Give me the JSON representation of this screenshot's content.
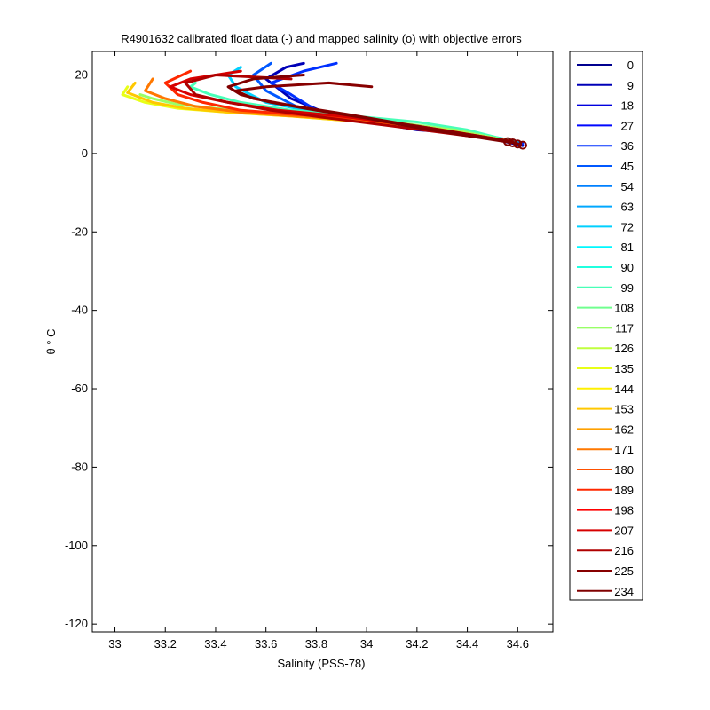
{
  "chart_data": {
    "type": "line",
    "title": "R4901632 calibrated float data (-) and mapped salinity (o) with objective errors",
    "xlabel": "Salinity (PSS-78)",
    "ylabel": "θ ° C",
    "xlim": [
      32.91,
      34.74
    ],
    "ylim": [
      -122,
      26
    ],
    "xticks": [
      33,
      33.2,
      33.4,
      33.6,
      33.8,
      34,
      34.2,
      34.4,
      34.6
    ],
    "xtick_labels": [
      "33",
      "33.2",
      "33.4",
      "33.6",
      "33.8",
      "34",
      "34.2",
      "34.4",
      "34.6"
    ],
    "yticks": [
      20,
      0,
      -20,
      -40,
      -60,
      -80,
      -100,
      -120
    ],
    "ytick_labels": [
      "20",
      "0",
      "-20",
      "-40",
      "-60",
      "-80",
      "-100",
      "-120"
    ],
    "grid": false,
    "legend_position": "outside-right",
    "legend": [
      {
        "label": "0",
        "color": "#00008f"
      },
      {
        "label": "9",
        "color": "#0000b7"
      },
      {
        "label": "18",
        "color": "#0000df"
      },
      {
        "label": "27",
        "color": "#0008ff"
      },
      {
        "label": "36",
        "color": "#0030ff"
      },
      {
        "label": "45",
        "color": "#0058ff"
      },
      {
        "label": "54",
        "color": "#0080ff"
      },
      {
        "label": "63",
        "color": "#00a8ff"
      },
      {
        "label": "72",
        "color": "#00d0ff"
      },
      {
        "label": "81",
        "color": "#00f8ff"
      },
      {
        "label": "90",
        "color": "#20ffdf"
      },
      {
        "label": "99",
        "color": "#48ffb7"
      },
      {
        "label": "108",
        "color": "#70ff8f"
      },
      {
        "label": "117",
        "color": "#98ff67"
      },
      {
        "label": "126",
        "color": "#c0ff3f"
      },
      {
        "label": "135",
        "color": "#e8ff17"
      },
      {
        "label": "144",
        "color": "#fff000"
      },
      {
        "label": "153",
        "color": "#ffc800"
      },
      {
        "label": "162",
        "color": "#ffa000"
      },
      {
        "label": "171",
        "color": "#ff7800"
      },
      {
        "label": "180",
        "color": "#ff5000"
      },
      {
        "label": "189",
        "color": "#ff2800"
      },
      {
        "label": "198",
        "color": "#ff0000"
      },
      {
        "label": "207",
        "color": "#d70000"
      },
      {
        "label": "216",
        "color": "#af0000"
      },
      {
        "label": "225",
        "color": "#870000"
      },
      {
        "label": "234",
        "color": "#800000"
      }
    ],
    "series": [
      {
        "color": "#0000b7",
        "x": [
          34.62,
          34.55,
          34.42,
          34.2,
          34.02,
          33.85,
          33.7,
          33.6,
          33.68,
          33.75
        ],
        "y": [
          2,
          3,
          5,
          6,
          8,
          10,
          14,
          19,
          22,
          23
        ]
      },
      {
        "color": "#0030ff",
        "x": [
          34.62,
          34.5,
          34.35,
          34.15,
          33.95,
          33.8,
          33.7,
          33.62,
          33.75,
          33.88
        ],
        "y": [
          2.5,
          4,
          5.5,
          7,
          9,
          11,
          15,
          18,
          21,
          23
        ]
      },
      {
        "color": "#0058ff",
        "x": [
          34.6,
          34.45,
          34.3,
          34.1,
          33.9,
          33.72,
          33.6,
          33.55,
          33.62
        ],
        "y": [
          2.5,
          5,
          6,
          7.5,
          9.5,
          12,
          16,
          20,
          23
        ]
      },
      {
        "color": "#00d0ff",
        "x": [
          34.6,
          34.4,
          34.2,
          34.0,
          33.8,
          33.6,
          33.48,
          33.45,
          33.5
        ],
        "y": [
          3,
          5.5,
          7,
          8.5,
          10.5,
          13,
          17,
          20,
          22
        ]
      },
      {
        "color": "#48ffb7",
        "x": [
          34.58,
          34.4,
          34.2,
          33.95,
          33.7,
          33.5,
          33.38,
          33.3,
          33.32
        ],
        "y": [
          3,
          6,
          8,
          9.5,
          11,
          13,
          15,
          17,
          18
        ]
      },
      {
        "color": "#98ff67",
        "x": [
          34.58,
          34.35,
          34.1,
          33.85,
          33.6,
          33.4,
          33.25,
          33.15,
          33.1
        ],
        "y": [
          3,
          6,
          8,
          9.5,
          10.5,
          11.5,
          12.5,
          14,
          15
        ]
      },
      {
        "color": "#e8ff17",
        "x": [
          34.58,
          34.3,
          34.0,
          33.7,
          33.45,
          33.25,
          33.12,
          33.03,
          33.05
        ],
        "y": [
          3,
          6,
          8,
          9.5,
          10.5,
          11.5,
          13,
          15,
          17
        ]
      },
      {
        "color": "#ffc800",
        "x": [
          34.58,
          34.3,
          34.0,
          33.7,
          33.45,
          33.28,
          33.15,
          33.05,
          33.08
        ],
        "y": [
          3,
          6,
          8,
          9.5,
          10.5,
          11.5,
          13,
          15.5,
          18
        ]
      },
      {
        "color": "#ff7800",
        "x": [
          34.58,
          34.3,
          34.0,
          33.72,
          33.5,
          33.32,
          33.2,
          33.12,
          33.15
        ],
        "y": [
          3,
          6,
          8.5,
          9.5,
          10.5,
          12,
          14,
          16,
          19
        ]
      },
      {
        "color": "#ff2800",
        "x": [
          34.58,
          34.25,
          33.95,
          33.7,
          33.5,
          33.35,
          33.25,
          33.2,
          33.3
        ],
        "y": [
          3,
          6.5,
          9,
          10,
          11,
          13,
          15,
          18,
          21
        ]
      },
      {
        "color": "#d70000",
        "x": [
          34.58,
          34.2,
          33.9,
          33.65,
          33.45,
          33.3,
          33.22,
          33.3,
          33.5
        ],
        "y": [
          3,
          7,
          9.5,
          11,
          13,
          15,
          17,
          19,
          21
        ]
      },
      {
        "color": "#af0000",
        "x": [
          34.58,
          34.1,
          33.85,
          33.62,
          33.45,
          33.32,
          33.28,
          33.4,
          33.7
        ],
        "y": [
          3,
          7,
          9,
          11,
          13,
          15,
          18,
          20,
          19
        ]
      },
      {
        "color": "#870000",
        "x": [
          34.58,
          34.15,
          33.92,
          33.72,
          33.55,
          33.48,
          33.6,
          33.85,
          34.02
        ],
        "y": [
          3,
          7.5,
          10,
          12,
          14,
          16,
          17,
          18,
          17
        ]
      },
      {
        "color": "#800000",
        "x": [
          34.6,
          34.25,
          34.0,
          33.8,
          33.62,
          33.5,
          33.45,
          33.55,
          33.75
        ],
        "y": [
          2.5,
          6,
          9,
          11,
          13,
          15,
          17,
          19,
          20
        ]
      }
    ],
    "mapped_points": {
      "x": [
        34.56,
        34.58,
        34.6,
        34.62
      ],
      "y": [
        3,
        2.7,
        2.4,
        2.1
      ],
      "color": "#800000"
    }
  }
}
